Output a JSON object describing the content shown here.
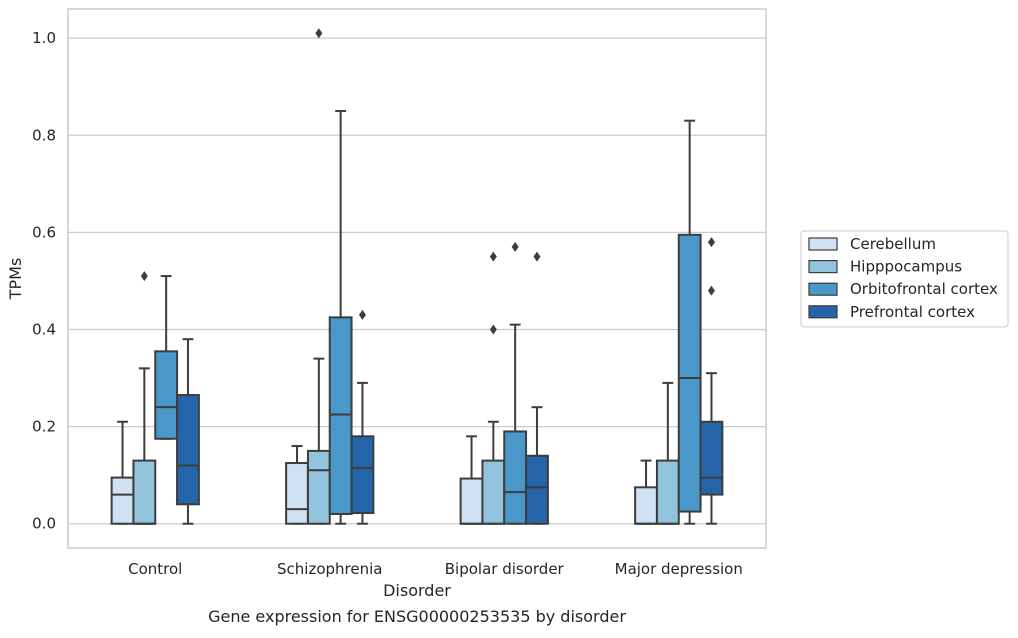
{
  "chart_data": {
    "type": "box",
    "caption": "Gene expression for ENSG00000253535 by disorder",
    "xlabel": "Disorder",
    "ylabel": "TPMs",
    "ylim": [
      -0.05,
      1.06
    ],
    "yticks": [
      0.0,
      0.2,
      0.4,
      0.6,
      0.8,
      1.0
    ],
    "ytick_labels": [
      "0.0",
      "0.2",
      "0.4",
      "0.6",
      "0.8",
      "1.0"
    ],
    "grid": "horizontal",
    "legend_position": "right",
    "categories": [
      "Control",
      "Schizophrenia",
      "Bipolar disorder",
      "Major depression"
    ],
    "series": [
      {
        "name": "Cerebellum",
        "color": "#cfe1f2",
        "boxes": [
          {
            "whisker_low": 0.0,
            "q1": 0.0,
            "median": 0.06,
            "q3": 0.095,
            "whisker_high": 0.21,
            "outliers": []
          },
          {
            "whisker_low": 0.0,
            "q1": 0.0,
            "median": 0.03,
            "q3": 0.125,
            "whisker_high": 0.16,
            "outliers": []
          },
          {
            "whisker_low": 0.0,
            "q1": 0.0,
            "median": 0.0,
            "q3": 0.093,
            "whisker_high": 0.18,
            "outliers": []
          },
          {
            "whisker_low": 0.0,
            "q1": 0.0,
            "median": 0.0,
            "q3": 0.075,
            "whisker_high": 0.13,
            "outliers": []
          }
        ]
      },
      {
        "name": "Hipppocampus",
        "color": "#93c4de",
        "boxes": [
          {
            "whisker_low": 0.0,
            "q1": 0.0,
            "median": 0.0,
            "q3": 0.13,
            "whisker_high": 0.32,
            "outliers": [
              0.51
            ]
          },
          {
            "whisker_low": 0.0,
            "q1": 0.0,
            "median": 0.11,
            "q3": 0.15,
            "whisker_high": 0.34,
            "outliers": [
              1.01
            ]
          },
          {
            "whisker_low": 0.0,
            "q1": 0.0,
            "median": 0.0,
            "q3": 0.13,
            "whisker_high": 0.21,
            "outliers": [
              0.4,
              0.55
            ]
          },
          {
            "whisker_low": 0.0,
            "q1": 0.0,
            "median": 0.0,
            "q3": 0.13,
            "whisker_high": 0.29,
            "outliers": []
          }
        ]
      },
      {
        "name": "Orbitofrontal cortex",
        "color": "#4a98c9",
        "boxes": [
          {
            "whisker_low": 0.175,
            "q1": 0.175,
            "median": 0.24,
            "q3": 0.355,
            "whisker_high": 0.51,
            "outliers": []
          },
          {
            "whisker_low": 0.0,
            "q1": 0.02,
            "median": 0.225,
            "q3": 0.425,
            "whisker_high": 0.85,
            "outliers": []
          },
          {
            "whisker_low": 0.0,
            "q1": 0.0,
            "median": 0.065,
            "q3": 0.19,
            "whisker_high": 0.41,
            "outliers": [
              0.57
            ]
          },
          {
            "whisker_low": 0.0,
            "q1": 0.025,
            "median": 0.3,
            "q3": 0.595,
            "whisker_high": 0.83,
            "outliers": []
          }
        ]
      },
      {
        "name": "Prefrontal cortex",
        "color": "#2365a8",
        "boxes": [
          {
            "whisker_low": 0.0,
            "q1": 0.04,
            "median": 0.12,
            "q3": 0.265,
            "whisker_high": 0.38,
            "outliers": []
          },
          {
            "whisker_low": 0.0,
            "q1": 0.022,
            "median": 0.115,
            "q3": 0.18,
            "whisker_high": 0.29,
            "outliers": [
              0.43
            ]
          },
          {
            "whisker_low": 0.0,
            "q1": 0.0,
            "median": 0.075,
            "q3": 0.14,
            "whisker_high": 0.24,
            "outliers": [
              0.55
            ]
          },
          {
            "whisker_low": 0.0,
            "q1": 0.06,
            "median": 0.095,
            "q3": 0.21,
            "whisker_high": 0.31,
            "outliers": [
              0.48,
              0.58
            ]
          }
        ]
      }
    ]
  }
}
